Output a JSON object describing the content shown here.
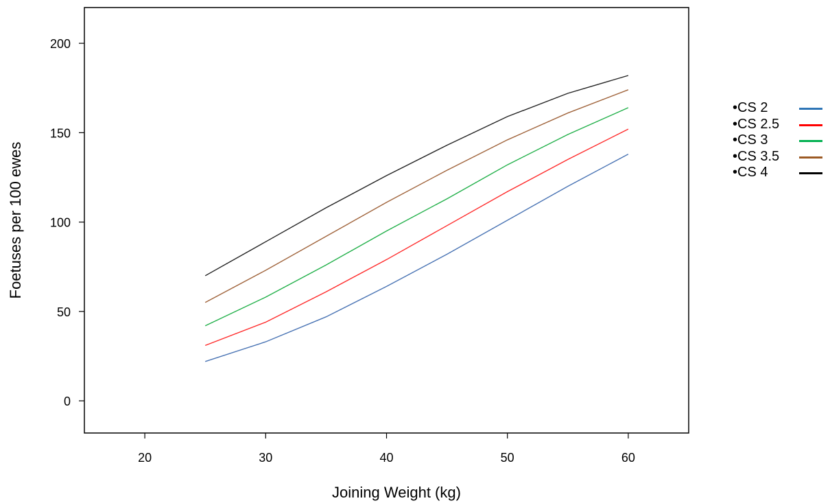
{
  "chart_data": {
    "type": "line",
    "xlabel": "Joining Weight (kg)",
    "ylabel": "Foetuses per 100 ewes",
    "xlim": [
      15,
      65
    ],
    "ylim": [
      -18,
      220
    ],
    "xticks": [
      20,
      30,
      40,
      50,
      60
    ],
    "yticks": [
      0,
      50,
      100,
      150,
      200
    ],
    "x": [
      25,
      30,
      35,
      40,
      45,
      50,
      55,
      60
    ],
    "legend_position": "right",
    "grid": false,
    "series": [
      {
        "name": "•CS 2",
        "color": "#4a74b4",
        "legend_color": "#2e75b6",
        "values": [
          22,
          33,
          47,
          64,
          82,
          101,
          120,
          138
        ]
      },
      {
        "name": "•CS 2.5",
        "color": "#ff2a2a",
        "legend_color": "#ff0000",
        "values": [
          31,
          44,
          61,
          79,
          98,
          117,
          135,
          152
        ]
      },
      {
        "name": "•CS 3",
        "color": "#22b04a",
        "legend_color": "#00b050",
        "values": [
          42,
          58,
          76,
          95,
          113,
          132,
          149,
          164
        ]
      },
      {
        "name": "•CS 3.5",
        "color": "#a0643c",
        "legend_color": "#9c5a24",
        "values": [
          55,
          73,
          92,
          111,
          129,
          146,
          161,
          174
        ]
      },
      {
        "name": "•CS 4",
        "color": "#222222",
        "legend_color": "#000000",
        "values": [
          70,
          89,
          108,
          126,
          143,
          159,
          172,
          182
        ]
      }
    ]
  }
}
